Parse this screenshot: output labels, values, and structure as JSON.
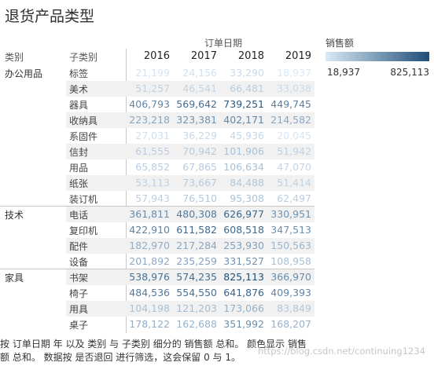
{
  "title": "退货产品类型",
  "column_group": "订单日期",
  "headers": {
    "category": "类别",
    "subcategory": "子类别"
  },
  "years": [
    "2016",
    "2017",
    "2018",
    "2019"
  ],
  "legend": {
    "title": "销售额",
    "min": "18,937",
    "max": "825,113",
    "color_low": "#dbe9f6",
    "color_high": "#1f4e79"
  },
  "groups": [
    {
      "category": "办公用品",
      "rows": [
        {
          "sub": "标签",
          "values": [
            "21,199",
            "24,156",
            "33,290",
            "18,937"
          ],
          "raw": [
            21199,
            24156,
            33290,
            18937
          ]
        },
        {
          "sub": "美术",
          "values": [
            "51,257",
            "46,541",
            "66,481",
            "33,038"
          ],
          "raw": [
            51257,
            46541,
            66481,
            33038
          ]
        },
        {
          "sub": "器具",
          "values": [
            "406,793",
            "569,642",
            "739,251",
            "449,745"
          ],
          "raw": [
            406793,
            569642,
            739251,
            449745
          ]
        },
        {
          "sub": "收纳具",
          "values": [
            "223,218",
            "323,381",
            "402,171",
            "214,582"
          ],
          "raw": [
            223218,
            323381,
            402171,
            214582
          ]
        },
        {
          "sub": "系固件",
          "values": [
            "27,031",
            "36,229",
            "45,936",
            "20,045"
          ],
          "raw": [
            27031,
            36229,
            45936,
            20045
          ]
        },
        {
          "sub": "信封",
          "values": [
            "61,555",
            "70,942",
            "101,906",
            "51,942"
          ],
          "raw": [
            61555,
            70942,
            101906,
            51942
          ]
        },
        {
          "sub": "用品",
          "values": [
            "65,852",
            "67,865",
            "106,634",
            "47,070"
          ],
          "raw": [
            65852,
            67865,
            106634,
            47070
          ]
        },
        {
          "sub": "纸张",
          "values": [
            "53,113",
            "73,667",
            "84,488",
            "51,414"
          ],
          "raw": [
            53113,
            73667,
            84488,
            51414
          ]
        },
        {
          "sub": "装订机",
          "values": [
            "57,943",
            "76,510",
            "95,308",
            "62,497"
          ],
          "raw": [
            57943,
            76510,
            95308,
            62497
          ]
        }
      ]
    },
    {
      "category": "技术",
      "rows": [
        {
          "sub": "电话",
          "values": [
            "361,811",
            "480,308",
            "626,977",
            "330,951"
          ],
          "raw": [
            361811,
            480308,
            626977,
            330951
          ]
        },
        {
          "sub": "复印机",
          "values": [
            "422,910",
            "611,582",
            "608,518",
            "347,513"
          ],
          "raw": [
            422910,
            611582,
            608518,
            347513
          ]
        },
        {
          "sub": "配件",
          "values": [
            "182,970",
            "217,284",
            "253,930",
            "150,563"
          ],
          "raw": [
            182970,
            217284,
            253930,
            150563
          ]
        },
        {
          "sub": "设备",
          "values": [
            "201,892",
            "235,259",
            "331,527",
            "108,958"
          ],
          "raw": [
            201892,
            235259,
            331527,
            108958
          ]
        }
      ]
    },
    {
      "category": "家具",
      "rows": [
        {
          "sub": "书架",
          "values": [
            "538,976",
            "574,235",
            "825,113",
            "366,970"
          ],
          "raw": [
            538976,
            574235,
            825113,
            366970
          ]
        },
        {
          "sub": "椅子",
          "values": [
            "484,536",
            "554,550",
            "641,876",
            "409,393"
          ],
          "raw": [
            484536,
            554550,
            641876,
            409393
          ]
        },
        {
          "sub": "用具",
          "values": [
            "104,198",
            "121,203",
            "173,066",
            "83,849"
          ],
          "raw": [
            104198,
            121203,
            173066,
            83849
          ]
        },
        {
          "sub": "桌子",
          "values": [
            "178,122",
            "162,688",
            "351,992",
            "168,207"
          ],
          "raw": [
            178122,
            162688,
            351992,
            168207
          ]
        }
      ]
    }
  ],
  "caption": "按 订单日期 年 以及 类别 与 子类别 细分的 销售额 总和。 颜色显示 销售额 总和。 数据按 是否退回 进行筛选，这会保留 0 与 1。",
  "watermark": "https://blog.csdn.net/continuing1234"
}
